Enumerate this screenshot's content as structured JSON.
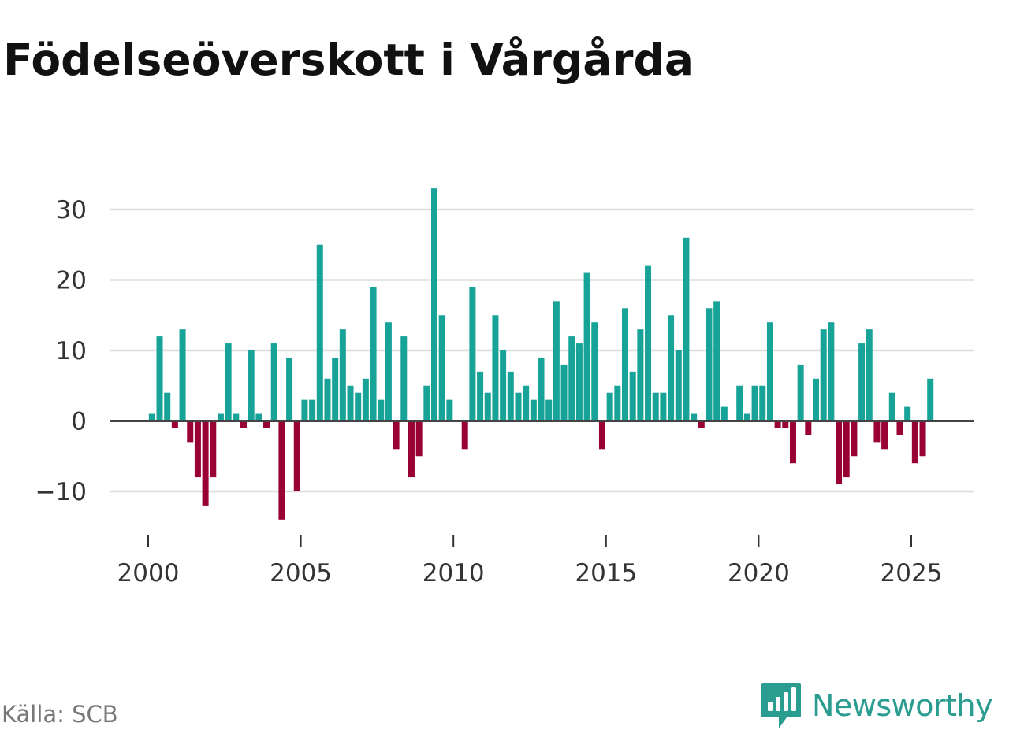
{
  "title": "Födelseöverskott i Vårgårda",
  "source": "Källa: SCB",
  "brand": "Newsworthy",
  "colors": {
    "positive": "#17a398",
    "negative": "#990033",
    "grid": "#dddddd",
    "zero": "#444444"
  },
  "chart_data": {
    "type": "bar",
    "title": "Födelseöverskott i Vårgårda",
    "xlabel": "",
    "ylabel": "",
    "ylim": [
      -15,
      35
    ],
    "xlim": [
      1998.3,
      2028.3
    ],
    "yticks": [
      30,
      20,
      10,
      0,
      -10
    ],
    "ytick_labels": [
      "30",
      "20",
      "10",
      "0",
      "−10"
    ],
    "xticks": [
      2000,
      2005,
      2010,
      2015,
      2020,
      2025
    ],
    "xtick_labels": [
      "2000",
      "2005",
      "2010",
      "2015",
      "2020",
      "2025"
    ],
    "start": 2000.125,
    "step": 0.25,
    "values": [
      1,
      12,
      4,
      -1,
      13,
      -3,
      -8,
      -12,
      -8,
      1,
      11,
      1,
      -1,
      10,
      1,
      -1,
      11,
      -14,
      9,
      -10,
      3,
      3,
      25,
      6,
      9,
      13,
      5,
      4,
      6,
      19,
      3,
      14,
      -4,
      12,
      -8,
      -5,
      5,
      33,
      15,
      3,
      0,
      -4,
      19,
      7,
      4,
      15,
      10,
      7,
      4,
      5,
      3,
      9,
      3,
      17,
      8,
      12,
      11,
      21,
      14,
      -4,
      4,
      5,
      16,
      7,
      13,
      22,
      4,
      4,
      15,
      10,
      26,
      1,
      -1,
      16,
      17,
      2,
      0,
      5,
      1,
      5,
      5,
      14,
      -1,
      -1,
      -6,
      8,
      -2,
      6,
      13,
      14,
      -9,
      -8,
      -5,
      11,
      13,
      -3,
      -4,
      4,
      -2,
      2,
      -6,
      -5,
      6
    ]
  }
}
